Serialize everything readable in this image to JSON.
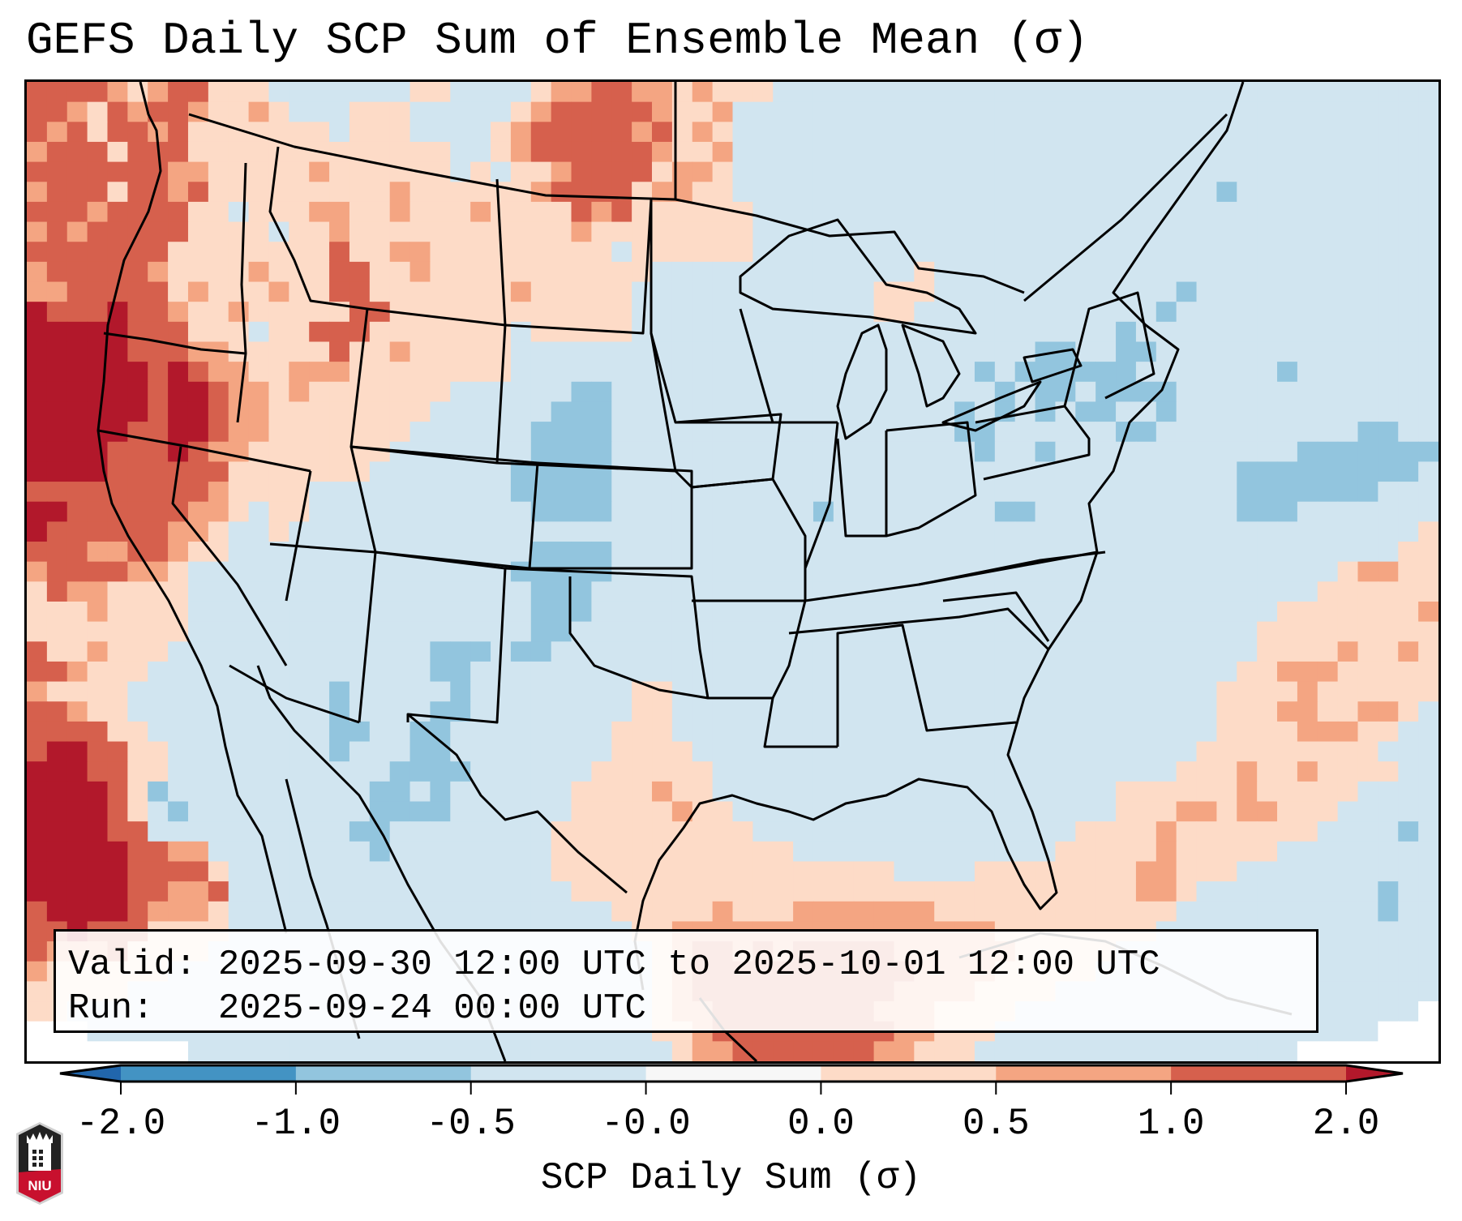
{
  "title": "GEFS Daily SCP Sum of Ensemble Mean (σ)",
  "info": {
    "valid_line": "Valid: 2025-09-30 12:00 UTC to 2025-10-01 12:00 UTC",
    "run_line": "Run:   2025-09-24 00:00 UTC"
  },
  "colorbar": {
    "label": "SCP Daily Sum (σ)",
    "ticks": [
      "-2.0",
      "-1.0",
      "-0.5",
      "-0.0",
      "0.0",
      "0.5",
      "1.0",
      "2.0"
    ],
    "boundaries": [
      -2.0,
      -1.0,
      -0.5,
      -0.0,
      0.0,
      0.5,
      1.0,
      2.0
    ],
    "under_color": "#2166ac",
    "over_color": "#b2182b",
    "bin_colors": [
      "#4393c3",
      "#92c5de",
      "#d1e5f0",
      "#f7f7f7",
      "#fddbc7",
      "#f4a582",
      "#d6604d"
    ],
    "extend": "both"
  },
  "logo": {
    "text": "NIU",
    "name": "Northern Illinois University"
  },
  "chart_data": {
    "type": "heatmap",
    "title": "GEFS Daily SCP Sum of Ensemble Mean (σ)",
    "colorbar_label": "SCP Daily Sum (σ)",
    "region": "Contiguous United States, southern Canada, northern Mexico, Gulf of Mexico, western Atlantic",
    "valid": "2025-09-30 12:00 UTC to 2025-10-01 12:00 UTC",
    "run": "2025-09-24 00:00 UTC",
    "levels": [
      -2.0,
      -1.0,
      -0.5,
      -0.0,
      0.0,
      0.5,
      1.0,
      2.0
    ],
    "category_key": {
      "w": "outside domain",
      "B": "-1.0 to -0.5",
      "b": "-0.5 to -0.0",
      "p": "0.0 to 0.5",
      "o": "0.5 to 1.0",
      "r": "1.0 to 2.0",
      "R": "> 2.0"
    },
    "category_colors": {
      "w": "#ffffff",
      "B": "#92c5de",
      "b": "#d1e5f0",
      "p": "#fddbc7",
      "o": "#f4a582",
      "r": "#d6604d",
      "R": "#b2182b"
    },
    "grid_rows": [
      "rrrroporrpppbbbbbbbppbbbbpoorroopopppbbbbbbbbbbbbbbbbbbbbbbbbbbbbbbbbb",
      "rroprorroppopbbbpppbbbbbporrrrroppobbbbbbbbbbbbbbbbbbbbbbbbbbbbbbbbbbb",
      "rorprrorpppppppbpppbbbbporrrrrorpopbbbbbbbbbbbbbbbbbbbbbbbbbbbbbbbbbbb",
      "orrrprrrpppppppppppppbbporrrrrroppobbbbbbbbbbbbbbbbbbbbbbbbbbbbbbbbbbbb",
      "rrrrrrroopppppoppppppbpbpporrrrpoopbbbbbbbbbbbbbbbbbbbbbbbbbbbbbbbbbbbb",
      "orrrprrorpppppppppopppppporrrrpooppbbbbbbbbbbbbbbbbbbbbbbbbBbbbbbbbbbbb",
      "rrrorrrrppbpppooppopppopppprorppppppbbbbbbbbbbbbbbbbbbbbbbbbbbbbbbbbbb",
      "ororrrrrppppbppopppppppppppoppppppppbbbbbbbbbbbbbbbbbbbbbbbbbbbbbbbbbb",
      "rrrrrrrpppppppprppoopppppppppbppppppbbbbbbbbbbbbbbbbbbbbbbbbbbbbbbbbbb",
      "orrrrroppppoppprrppopppppppppppbbbbbbbbbbbbbpbbbbbbbbbbbbbbbbbbbbbbbbb",
      "oorrrrrpopppopprrpppppppopppppbbbbbbbbbbbbpppbbbbbbbbbbbbBbbbbbbbbbbbb",
      "RrrrRrroppoppppprrppppppppppppbbbbbbbbbbbbppbbbbbbbbbbbbBbbbbbbbbbbbbb",
      "RRRRRrrrpppbpprrrpppppppbpppppbbbbbbbbbbbbbbbbbbbbbbbbBbbbbbbbbbbbbbbb",
      "RRRRRrrrooppppprppopppppbbbbbbbbbbbbbbbbbbbbbbbbbbBBbbBBbbbbbbbbbbbbbb",
      "RRRRRRrRrooppoooppppppppbbbbbbbbbbbbbbbbbbbbbbbBbBBBBBBbbbbbbbBbbbbbbb",
      "RRRRRRrRRroopopppppppbbbbbbBBbbbbbbbbbbbbbbbbbbbBbBBbBBBBbbbbbbbbbbbbb",
      "RRRRRRrRRrooppppppppbbbbbbBBBbbbbbbbbbbbbbbbbbBbBbBbBBbbBbbbbbbbbbbbbb",
      "RRRRRrrRRroopppppppbbbbbbBBBBbbbbbbbbbbbbbbbbbBBbbbbbbBBbbbbbbbbbbBBbb",
      "RRRRrrrRroopppppppbbbbbbbBBBBbbbbbbbbbbbbbbbbbbBbbBbbbbbbbbbbbbBBBBBBB",
      "RRRRrrrrrrpppppppbbbbbbbBBBBBbbbbbbbbbbbbbbbbbbbbbbbbbbbbbbbBBBBBBBBBb",
      "rrrrrrrrroppppbbbbbbbbbbBBBBBbbbbbbbbbbbbbbbbbbbbbbbbbbbbbbbBBBBBBBbbb",
      "RRrrrrrroopbppbbbbbbbbbbbBBBBbbbbbbbbbbBbbbbbbbbBBbbbbbbbbbbBBBbbbbbbb",
      "Rrrrrrroopbbpbbbbbbbbbbbbbbbbbbbbbbbbbbbbbbbbbbbbbbbbbbbbbbbbbbbbbbbbp",
      "rrroorroppbbbbbbbbbbbbbbbBBBBbbbbbbbbbbbbbbbbbbbbbbbbbbbbbbbbbbbbbbbpp",
      "orrrroopbbbbbbbbbbbbbbbbBBBBBbbbbbbbbbbbbbbbbbbbbbbbbbbbbbbbbbbbbpoopp",
      "prooppppbbbbbbbbbbbbbbbbbBBBbbbbbbbbbbbbbbbbbbbbbbbbbbbbbbbbbbbbpppppp",
      "pppoppppbbbbbbbbbbbbbbbbbBBBbbbbbbbbbbbbbbbbbbbbbbbbbbbbbbbbbbpppppppo",
      "ppppppppbbbbbbbbbbbbbbbbbBBbbbbbbbbbbbbbbbbbbbbbbbbbbbbbbbbbbppppppppp",
      "rppopppbbbbbbbbbbbbbBBBbBBbbbbbbbbbbbbbbbbbbbbbbbbbbbbbbbbbbbppppoppop",
      "rropppbbbbbbbbbbbbbbBBbbbbbbbbbbbbbbbbbbbbbbbbbbbbbbbbbbbbbbppoooppppp",
      "oppppbbbbbbbbbbBbbbbbBbbbbbbbbppbbbbbbbbbbbbbbbbbbbbbbbbbbbppppopppppp",
      "rroppbbbbbbbbbbBbbbbBBbbbbbbbbppbbbbbbbbbbbbbbbbbbbbbbbbbbbpppooppoopb",
      "rrrrppbbbbbbbbbBBbbBBbbbbbbbbpppbbbbbbbbbbbbbbbbbbbbbbbbbbbppppoooppbb",
      "rRRrrppbbbbbbbbBbbbBBbbbbbbbbppppbbbbbbbbbbbbbbbbbbbbbbbbbpppppppppbbb",
      "RRRrrppbbbbbbbbbbbBBBBbbbbbbppppppbbbbbbbbbbbbbbbbbbbbbbbpppoppoppppbb",
      "RRRRrpBbbbbbbbbbbBBbBbbbbbbppppoppbbbbbbbbbbbbbbbbbbbbppppppopppppbbbb",
      "RRRRrpbBbbbbbbbbbBBBBbbbbbbpppppoppbbbbbbbbbbbbbbbbbbbpppoopoopppbbbbb",
      "RRRRrrbbbbbbbbbbBBbbbbbbbbppppppppppbbbbbbbbbbbbbbbbppppopppppppbbbbBb",
      "RRRRRrroobbbbbbbbBbbbbbbbbppppppppppppbbbbbbbbbbbbbpppppopppppbbbbbbbb",
      "RRRRRrrrrpbbbbbbbbbbbbbbbbpppppppppppppppppbbbbppppppppoopppbbbbbbbbbb",
      "RRRRRrroorbbbbbbbbbbbbbbbbbppppppppppppppppppppppppppppoopbbbbbbbbbBbb",
      "rRRRRrooopbbbbbbbbbbbbbbbbbbbpppppopppoooooooppppppppppppbbbbbbbbbbBbb",
      "rrRrrrppppbbbbbbbbbbbbbbbbbbbbppooooooooooooooooppppppppbbbbbbbbbbbbbb",
      "rooorppppbbbbbbbbbbbbbbbbbbbbbbporrororrrrroooooopppppbbbbbbbbbbbbbbbb",
      "oppppppbbbbbbbbbbbbbbbbbbbbbbbbporrrrrrrrrrroooopppppbbbbbbbbbbbbbbbbb",
      "pppppbbbbbbbbbbbbbbbbbbbbbbbbbbporrrrrrrrrrooooppppbbbbbbbbbbbbbbbbbbb",
      "ppbbbbbbbbbbbbbbbbbbbbbbbbbbbbbpoorrrrrrrroooppppbbbbbbbbbbbbbbbbbbbbw",
      "wwwbbbbbbbbbbbbbbbbbbbbbbbbbbbbpporrrrrrrrroopppbbbbbbbbbbbbbbbbbbbwww",
      "wwwwwwwwbbbbbbbbbbbbbbbbbbbbbbbbpoorrrrrrroopppbbbbbbbbbbbbbbbbwwwwwww"
    ]
  }
}
